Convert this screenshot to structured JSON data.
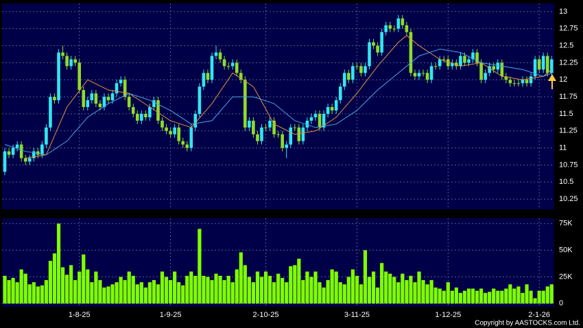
{
  "chart_data": [
    {
      "type": "candlestick",
      "open": [
        10.65,
        10.95,
        10.9,
        11.0,
        11.05,
        10.85,
        10.8,
        10.85,
        10.95,
        10.9,
        11.05,
        11.3,
        11.75,
        11.7,
        12.4,
        12.35,
        12.2,
        12.3,
        12.25,
        11.85,
        11.6,
        11.7,
        11.8,
        11.65,
        11.6,
        11.75,
        11.7,
        11.8,
        11.95,
        12.0,
        11.75,
        11.6,
        11.5,
        11.4,
        11.5,
        11.45,
        11.6,
        11.7,
        11.4,
        11.3,
        11.25,
        11.2,
        11.3,
        11.1,
        11.05,
        11.0,
        11.3,
        11.5,
        11.9,
        12.1,
        12.0,
        12.35,
        12.4,
        12.3,
        12.2,
        12.2,
        12.25,
        12.1,
        12.0,
        11.3,
        11.4,
        11.2,
        11.1,
        11.3,
        11.3,
        11.4,
        11.2,
        11.2,
        11.0,
        11.05,
        11.3,
        11.3,
        11.1,
        11.3,
        11.4,
        11.45,
        11.5,
        11.3,
        11.5,
        11.6,
        11.55,
        11.7,
        11.9,
        12.1,
        12.0,
        12.2,
        12.2,
        12.1,
        12.2,
        12.55,
        12.5,
        12.4,
        12.7,
        12.8,
        12.75,
        12.75,
        12.9,
        12.8,
        12.7,
        12.1,
        12.05,
        12.1,
        12.1,
        12.0,
        12.2,
        12.2,
        12.3,
        12.3,
        12.2,
        12.25,
        12.2,
        12.35,
        12.25,
        12.3,
        12.4,
        12.25,
        12.0,
        12.1,
        12.2,
        12.15,
        12.25,
        12.05,
        12.0,
        11.95,
        11.95,
        11.95,
        12.0,
        11.95,
        12.05,
        12.3,
        12.15,
        12.35,
        12.1
      ],
      "high": [
        11.0,
        11.0,
        11.05,
        11.1,
        11.1,
        10.9,
        10.9,
        11.0,
        11.0,
        11.1,
        11.35,
        11.8,
        11.8,
        12.45,
        12.5,
        12.4,
        12.35,
        12.35,
        12.3,
        11.9,
        11.75,
        11.85,
        11.85,
        11.7,
        11.8,
        11.8,
        11.85,
        12.0,
        12.05,
        12.05,
        11.8,
        11.65,
        11.55,
        11.55,
        11.55,
        11.65,
        11.75,
        11.75,
        11.45,
        11.35,
        11.3,
        11.35,
        11.35,
        11.15,
        11.1,
        11.35,
        11.55,
        11.95,
        12.15,
        12.15,
        12.4,
        12.5,
        12.45,
        12.35,
        12.25,
        12.3,
        12.3,
        12.15,
        12.05,
        11.45,
        11.45,
        11.25,
        11.35,
        11.35,
        11.45,
        11.45,
        11.25,
        11.25,
        11.1,
        11.35,
        11.35,
        11.35,
        11.35,
        11.45,
        11.5,
        11.55,
        11.55,
        11.55,
        11.65,
        11.65,
        11.75,
        11.95,
        12.15,
        12.15,
        12.25,
        12.25,
        12.25,
        12.25,
        12.6,
        12.6,
        12.55,
        12.75,
        12.85,
        12.85,
        12.8,
        12.95,
        12.95,
        12.85,
        12.75,
        12.15,
        12.15,
        12.15,
        12.15,
        12.25,
        12.25,
        12.35,
        12.35,
        12.35,
        12.3,
        12.3,
        12.4,
        12.4,
        12.35,
        12.45,
        12.45,
        12.3,
        12.15,
        12.25,
        12.25,
        12.3,
        12.3,
        12.1,
        12.05,
        12.0,
        12.0,
        12.05,
        12.05,
        12.1,
        12.35,
        12.35,
        12.4,
        12.4,
        12.35
      ],
      "low": [
        10.6,
        10.85,
        10.85,
        10.95,
        10.8,
        10.75,
        10.75,
        10.8,
        10.85,
        10.85,
        11.0,
        11.25,
        11.65,
        11.65,
        12.3,
        12.15,
        12.15,
        12.2,
        11.8,
        11.55,
        11.55,
        11.65,
        11.6,
        11.55,
        11.55,
        11.65,
        11.65,
        11.75,
        11.9,
        11.7,
        11.55,
        11.45,
        11.35,
        11.35,
        11.4,
        11.4,
        11.55,
        11.35,
        11.25,
        11.2,
        11.15,
        11.15,
        11.05,
        11.0,
        10.95,
        10.95,
        11.25,
        11.45,
        11.85,
        11.95,
        11.95,
        12.3,
        12.25,
        12.15,
        12.15,
        12.15,
        12.05,
        11.95,
        11.25,
        11.25,
        11.15,
        11.05,
        11.05,
        11.25,
        11.25,
        11.15,
        11.15,
        10.95,
        10.85,
        11.0,
        11.25,
        11.05,
        11.05,
        11.25,
        11.35,
        11.4,
        11.25,
        11.25,
        11.45,
        11.5,
        11.5,
        11.65,
        11.85,
        11.95,
        11.95,
        12.15,
        12.05,
        12.05,
        12.15,
        12.45,
        12.35,
        12.35,
        12.65,
        12.7,
        12.7,
        12.7,
        12.75,
        12.65,
        12.05,
        12.0,
        12.0,
        12.05,
        11.95,
        11.95,
        12.15,
        12.15,
        12.25,
        12.15,
        12.15,
        12.15,
        12.15,
        12.2,
        12.2,
        12.25,
        12.2,
        11.95,
        11.95,
        12.05,
        12.1,
        12.1,
        12.0,
        11.95,
        11.9,
        11.9,
        11.9,
        11.9,
        11.9,
        11.9,
        12.0,
        12.1,
        12.1,
        12.05,
        12.05
      ],
      "close": [
        10.95,
        10.9,
        11.0,
        11.05,
        10.85,
        10.8,
        10.85,
        10.95,
        10.9,
        11.05,
        11.3,
        11.75,
        11.7,
        12.4,
        12.35,
        12.2,
        12.3,
        12.25,
        11.85,
        11.6,
        11.7,
        11.8,
        11.65,
        11.6,
        11.75,
        11.7,
        11.8,
        11.95,
        12.0,
        11.75,
        11.6,
        11.5,
        11.4,
        11.5,
        11.45,
        11.6,
        11.7,
        11.4,
        11.3,
        11.25,
        11.2,
        11.3,
        11.1,
        11.05,
        11.0,
        11.3,
        11.5,
        11.9,
        12.1,
        12.0,
        12.35,
        12.4,
        12.3,
        12.2,
        12.2,
        12.25,
        12.1,
        12.0,
        11.3,
        11.4,
        11.2,
        11.1,
        11.3,
        11.3,
        11.4,
        11.2,
        11.2,
        11.0,
        11.05,
        11.3,
        11.3,
        11.1,
        11.3,
        11.4,
        11.45,
        11.5,
        11.3,
        11.5,
        11.6,
        11.55,
        11.7,
        11.9,
        12.1,
        12.0,
        12.2,
        12.2,
        12.1,
        12.2,
        12.55,
        12.5,
        12.4,
        12.7,
        12.8,
        12.75,
        12.75,
        12.9,
        12.8,
        12.7,
        12.1,
        12.05,
        12.1,
        12.1,
        12.0,
        12.2,
        12.2,
        12.3,
        12.3,
        12.2,
        12.25,
        12.2,
        12.35,
        12.25,
        12.3,
        12.4,
        12.25,
        12.0,
        12.1,
        12.2,
        12.15,
        12.25,
        12.05,
        12.0,
        11.95,
        11.95,
        11.95,
        12.0,
        11.95,
        12.05,
        12.3,
        12.15,
        12.35,
        12.1,
        12.3
      ],
      "up_color": "#33e6f0",
      "down_color": "#8fdc2a",
      "lines": [
        {
          "color": "#e8913a",
          "x": [
            5,
            10,
            15,
            20,
            25,
            30,
            35,
            40,
            45,
            50,
            55,
            60,
            65,
            70,
            75,
            80,
            85,
            90,
            95,
            97,
            100,
            105,
            110,
            115,
            120,
            125,
            130,
            132
          ],
          "values": [
            10.85,
            10.9,
            11.6,
            12.0,
            11.85,
            11.8,
            11.6,
            11.4,
            11.3,
            11.65,
            12.1,
            11.9,
            11.35,
            11.2,
            11.25,
            11.45,
            11.8,
            12.2,
            12.55,
            12.65,
            12.5,
            12.3,
            12.2,
            12.25,
            12.05,
            12.0,
            12.05,
            12.15
          ]
        },
        {
          "color": "#4aa8e8",
          "x": [
            0,
            5,
            10,
            15,
            20,
            25,
            30,
            35,
            40,
            45,
            50,
            55,
            60,
            65,
            70,
            75,
            80,
            85,
            90,
            95,
            100,
            105,
            110,
            115,
            120,
            125,
            130,
            132
          ],
          "values": [
            11.05,
            10.95,
            10.9,
            11.1,
            11.45,
            11.65,
            11.8,
            11.7,
            11.55,
            11.35,
            11.4,
            11.75,
            11.75,
            11.65,
            11.4,
            11.3,
            11.35,
            11.55,
            11.85,
            12.1,
            12.35,
            12.45,
            12.4,
            12.25,
            12.2,
            12.15,
            12.05,
            12.1
          ]
        }
      ],
      "ylim": [
        10.1,
        13.12
      ],
      "yticks": [
        10.25,
        10.5,
        10.75,
        11,
        11.25,
        11.5,
        11.75,
        12,
        12.25,
        12.5,
        12.75,
        13
      ],
      "grid": true
    },
    {
      "type": "bar",
      "categories": [
        null,
        null,
        null,
        null,
        null,
        null,
        null,
        null,
        null,
        null,
        null,
        null,
        null,
        null,
        null,
        null,
        null,
        null,
        "1-8-25",
        null,
        null,
        null,
        null,
        null,
        null,
        null,
        null,
        null,
        null,
        null,
        null,
        null,
        null,
        null,
        null,
        null,
        null,
        null,
        null,
        null,
        "1-9-25",
        null,
        null,
        null,
        null,
        null,
        null,
        null,
        null,
        null,
        null,
        null,
        null,
        null,
        null,
        null,
        null,
        null,
        null,
        null,
        null,
        null,
        null,
        "2-10-25",
        null,
        null,
        null,
        null,
        null,
        null,
        null,
        null,
        null,
        null,
        null,
        null,
        null,
        null,
        null,
        null,
        null,
        null,
        null,
        null,
        null,
        "3-11-25",
        null,
        null,
        null,
        null,
        null,
        null,
        null,
        null,
        null,
        null,
        null,
        null,
        null,
        null,
        null,
        null,
        null,
        null,
        null,
        null,
        null,
        "1-12-25",
        null,
        null,
        null,
        null,
        null,
        null,
        null,
        null,
        null,
        null,
        null,
        null,
        null,
        null,
        null,
        null,
        null,
        null,
        null,
        null,
        null,
        "2-1-26",
        null,
        null,
        null
      ],
      "values": [
        26000,
        22000,
        24000,
        20000,
        32000,
        28000,
        18000,
        20000,
        16000,
        17000,
        22000,
        40000,
        47000,
        75000,
        34000,
        27000,
        36000,
        22000,
        30000,
        46000,
        32000,
        20000,
        30000,
        22000,
        15000,
        16000,
        18000,
        20000,
        25000,
        22000,
        30000,
        26000,
        18000,
        20000,
        15000,
        20000,
        22000,
        18000,
        30000,
        25000,
        22000,
        30000,
        20000,
        17000,
        26000,
        30000,
        26000,
        70000,
        26000,
        25000,
        22000,
        28000,
        26000,
        22000,
        26000,
        20000,
        32000,
        48000,
        36000,
        25000,
        20000,
        30000,
        25000,
        30000,
        26000,
        20000,
        28000,
        24000,
        20000,
        35000,
        36000,
        42000,
        22000,
        30000,
        25000,
        30000,
        20000,
        15000,
        22000,
        32000,
        30000,
        20000,
        18000,
        25000,
        32000,
        26000,
        18000,
        50000,
        25000,
        30000,
        15000,
        38000,
        30000,
        28000,
        25000,
        20000,
        28000,
        22000,
        26000,
        20000,
        30000,
        22000,
        18000,
        22000,
        15000,
        14000,
        12000,
        20000,
        12000,
        15000,
        10000,
        12000,
        14000,
        14000,
        12000,
        14000,
        10000,
        11000,
        14000,
        12000,
        12000,
        14000,
        18000,
        14000,
        16000,
        10000,
        18000,
        12000,
        5000,
        12000,
        12000,
        16000,
        18000
      ],
      "color": "#7fff00",
      "ylim": [
        -3000,
        80000
      ],
      "yticks": [
        0,
        {
          "value": 25000,
          "label": "25K"
        },
        {
          "value": 50000,
          "label": "50K"
        },
        {
          "value": 75000,
          "label": "75K"
        }
      ],
      "grid": true
    }
  ],
  "footer": "Copyright by AASTOCKS.com Ltd."
}
